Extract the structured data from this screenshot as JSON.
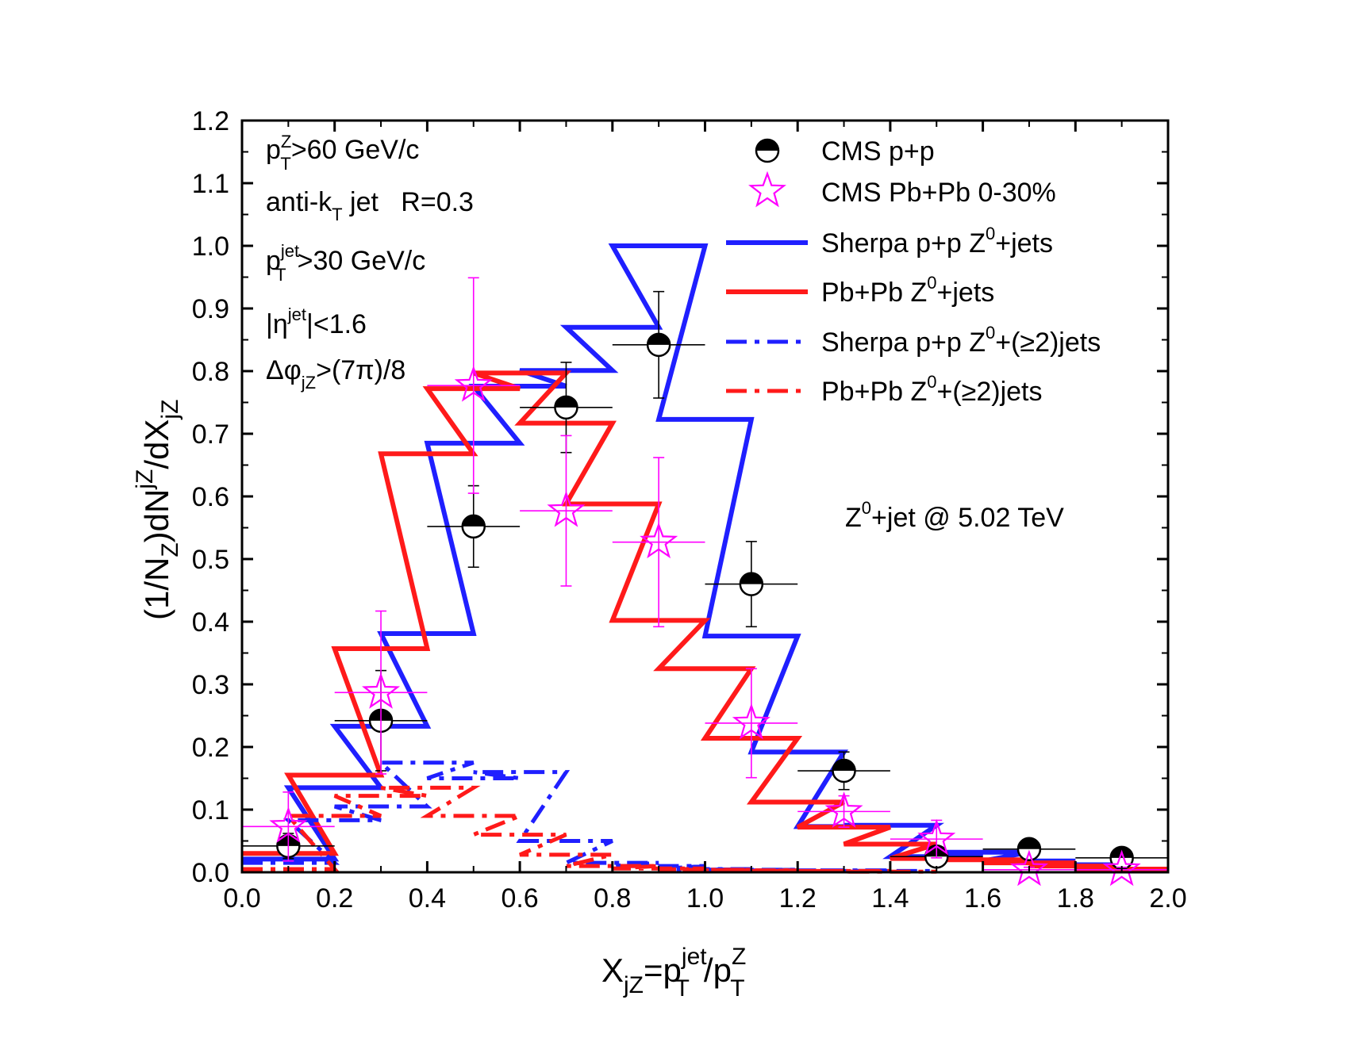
{
  "chart_data": {
    "type": "line",
    "title": "",
    "xlabel": {
      "base": "X",
      "sub1": "jZ",
      "eq": "=p",
      "sup2": "jet",
      "sub2": "T",
      "slash": "/p",
      "sup3": "Z",
      "sub3": "T"
    },
    "ylabel": {
      "p1": "(1/N",
      "s1": "Z",
      "p2": ")dN",
      "s2": "jZ",
      "p3": "/dX",
      "s3": "jZ"
    },
    "xlim": [
      0,
      2.0
    ],
    "ylim": [
      0,
      1.2
    ],
    "xticks": [
      "0.0",
      "0.2",
      "0.4",
      "0.6",
      "0.8",
      "1.0",
      "1.2",
      "1.4",
      "1.6",
      "1.8",
      "2.0"
    ],
    "yticks": [
      "0.0",
      "0.1",
      "0.2",
      "0.3",
      "0.4",
      "0.5",
      "0.6",
      "0.7",
      "0.8",
      "0.9",
      "1.0",
      "1.1",
      "1.2"
    ],
    "colors": {
      "blue": "#1f1fff",
      "red": "#ff1a1a",
      "magenta": "#ff00ff",
      "black": "#000000"
    },
    "bin_edges": [
      0.0,
      0.2,
      0.4,
      0.6,
      0.8,
      1.0,
      1.2,
      1.4,
      1.6,
      1.8,
      2.0
    ],
    "series": [
      {
        "name": "CMS p+p",
        "kind": "points",
        "marker": "half-circle",
        "color": "#000000",
        "x": [
          0.1,
          0.3,
          0.5,
          0.7,
          0.9,
          1.1,
          1.3,
          1.5,
          1.7,
          1.9
        ],
        "y": [
          0.042,
          0.242,
          0.552,
          0.742,
          0.842,
          0.46,
          0.162,
          0.025,
          0.037,
          0.023
        ],
        "xerr": [
          0.1,
          0.1,
          0.1,
          0.1,
          0.1,
          0.1,
          0.1,
          0.1,
          0.1,
          0.1
        ],
        "yerr": [
          0.02,
          0.08,
          0.065,
          0.072,
          0.085,
          0.068,
          0.03,
          0.01,
          0.012,
          0.01
        ]
      },
      {
        "name": "CMS Pb+Pb 0-30%",
        "kind": "points",
        "marker": "star",
        "color": "#ff00ff",
        "x": [
          0.1,
          0.3,
          0.5,
          0.7,
          0.9,
          1.1,
          1.3,
          1.5,
          1.7,
          1.9
        ],
        "y": [
          0.073,
          0.287,
          0.777,
          0.577,
          0.527,
          0.238,
          0.097,
          0.053,
          0.004,
          0.004
        ],
        "xerr": [
          0.1,
          0.1,
          0.1,
          0.1,
          0.1,
          0.1,
          0.1,
          0.1,
          0.1,
          0.1
        ],
        "yerr": [
          0.055,
          0.13,
          0.172,
          0.12,
          0.135,
          0.087,
          0.025,
          0.03,
          0.004,
          0.004
        ]
      },
      {
        "name": "Sherpa p+p Z0+jets",
        "kind": "step",
        "style": "solid",
        "color": "#1f1fff",
        "x": [
          0.1,
          0.2,
          0.3,
          0.4,
          0.5,
          0.6,
          0.7,
          0.8,
          0.9,
          1.0,
          1.1,
          1.2,
          1.3,
          1.4,
          1.5,
          1.6,
          1.7,
          1.8,
          1.9
        ],
        "y": [
          0.021,
          0.135,
          0.233,
          0.381,
          0.685,
          0.776,
          0.801,
          0.87,
          1.0,
          0.723,
          0.377,
          0.192,
          0.073,
          0.075,
          0.025,
          0.032,
          0.018,
          0.012,
          0.005
        ]
      },
      {
        "name": "Pb+Pb Z0+jets",
        "kind": "step",
        "style": "solid",
        "color": "#ff1a1a",
        "x": [
          0.1,
          0.2,
          0.3,
          0.4,
          0.5,
          0.6,
          0.7,
          0.8,
          0.9,
          1.0,
          1.1,
          1.2,
          1.3,
          1.4,
          1.5,
          1.6,
          1.7,
          1.8,
          1.9
        ],
        "y": [
          0.03,
          0.155,
          0.357,
          0.668,
          0.772,
          0.797,
          0.717,
          0.588,
          0.402,
          0.325,
          0.214,
          0.112,
          0.072,
          0.045,
          0.022,
          0.02,
          0.015,
          0.01,
          0.005
        ]
      },
      {
        "name": "Sherpa p+p Z0+(≥2)jets",
        "kind": "step",
        "style": "dashdot",
        "color": "#1f1fff",
        "x": [
          0.1,
          0.2,
          0.3,
          0.4,
          0.5,
          0.6,
          0.7,
          0.8,
          0.9,
          1.0,
          1.1,
          1.2,
          1.3,
          1.4
        ],
        "y": [
          0.015,
          0.083,
          0.105,
          0.175,
          0.15,
          0.16,
          0.05,
          0.015,
          0.01,
          0.005,
          0.004,
          0.003,
          0.003,
          0.002
        ]
      },
      {
        "name": "Pb+Pb Z0+(≥2)jets",
        "kind": "step",
        "style": "dashdot",
        "color": "#ff1a1a",
        "x": [
          0.1,
          0.2,
          0.3,
          0.4,
          0.5,
          0.6,
          0.7,
          0.8,
          0.9,
          1.0,
          1.1,
          1.2,
          1.3,
          1.4
        ],
        "y": [
          0.005,
          0.09,
          0.122,
          0.135,
          0.09,
          0.06,
          0.028,
          0.01,
          0.006,
          0.004,
          0.003,
          0.002,
          0.002,
          0.001
        ]
      }
    ],
    "legend": [
      {
        "a": "CMS p+p"
      },
      {
        "a": "CMS Pb+Pb 0-30%"
      },
      {
        "a": "Sherpa p+p Z",
        "sup": "0",
        "b": "+jets"
      },
      {
        "a": "Pb+Pb Z",
        "sup": "0",
        "b": "+jets"
      },
      {
        "a": "Sherpa p+p Z",
        "sup": "0",
        "b": "+(≥2)jets"
      },
      {
        "a": "Pb+Pb Z",
        "sup": "0",
        "b": "+(≥2)jets"
      }
    ],
    "legend_position": "top-right",
    "annotations": {
      "pt_z": {
        "a": "p",
        "sup": "Z",
        "sub": "T",
        "b": ">60 GeV/c"
      },
      "antikt": {
        "a": "anti-k",
        "sub": "T",
        "b": " jet   R=0.3"
      },
      "pt_jet": {
        "a": "p",
        "sup": "jet",
        "sub": "T",
        "b": ">30 GeV/c"
      },
      "eta": {
        "a": "|η",
        "sup": "jet",
        "b": "|<1.6"
      },
      "dphi": {
        "a": "Δφ",
        "sub": "jZ",
        "b": ">(7π)/8"
      },
      "energy": {
        "a": "Z",
        "sup": "0",
        "b": "+jet @ 5.02 TeV"
      }
    }
  }
}
